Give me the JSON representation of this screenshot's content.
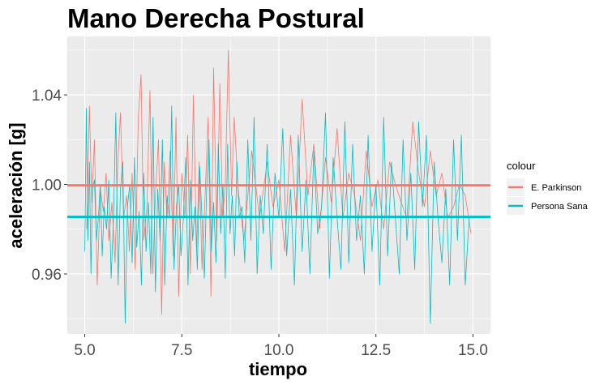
{
  "chart_data": {
    "type": "line",
    "title": "Mano Derecha Postural",
    "xlabel": "tiempo",
    "ylabel": "aceleración [g]",
    "xlim": [
      4.55,
      15.45
    ],
    "ylim": [
      0.9332,
      1.0661
    ],
    "x_ticks": [
      5.0,
      7.5,
      10.0,
      12.5,
      15.0
    ],
    "x_tick_labels": [
      "5.0",
      "7.5",
      "10.0",
      "12.5",
      "15.0"
    ],
    "y_ticks": [
      0.96,
      1.0,
      1.04
    ],
    "y_tick_labels": [
      "0.96",
      "1.00",
      "1.04"
    ],
    "grid": true,
    "legend": {
      "title": "colour",
      "position": "right",
      "entries": [
        "E. Parkinson",
        "Persona Sana"
      ]
    },
    "series": [
      {
        "name": "E. Parkinson",
        "color": "#F8766D",
        "mean": 0.9996,
        "x": [
          5.05,
          5.12,
          5.18,
          5.25,
          5.32,
          5.4,
          5.48,
          5.55,
          5.62,
          5.7,
          5.78,
          5.85,
          5.92,
          6.0,
          6.08,
          6.15,
          6.22,
          6.3,
          6.38,
          6.45,
          6.52,
          6.6,
          6.68,
          6.75,
          6.82,
          6.9,
          6.98,
          7.05,
          7.12,
          7.2,
          7.28,
          7.35,
          7.42,
          7.5,
          7.58,
          7.65,
          7.72,
          7.8,
          7.88,
          7.95,
          8.02,
          8.1,
          8.18,
          8.25,
          8.32,
          8.4,
          8.48,
          8.55,
          8.62,
          8.7,
          8.78,
          8.85,
          8.95,
          9.1,
          9.3,
          9.5,
          9.7,
          9.85,
          10.0,
          10.15,
          10.3,
          10.45,
          10.6,
          10.75,
          10.9,
          11.05,
          11.2,
          11.35,
          11.5,
          11.65,
          11.8,
          11.95,
          12.1,
          12.25,
          12.4,
          12.55,
          12.7,
          12.85,
          13.0,
          13.15,
          13.3,
          13.45,
          13.6,
          13.75,
          13.9,
          14.05,
          14.2,
          14.35,
          14.5,
          14.65,
          14.8,
          14.95
        ],
        "y": [
          0.98,
          1.035,
          0.992,
          1.02,
          0.955,
          0.998,
          0.988,
          1.005,
          0.975,
          0.992,
          0.965,
          1.01,
          1.032,
          0.985,
          0.995,
          0.97,
          1.005,
          0.962,
          1.03,
          1.049,
          0.975,
          0.99,
          1.042,
          0.96,
          0.995,
          1.02,
          0.942,
          1.01,
          0.985,
          1.015,
          0.968,
          1.03,
          0.95,
          1.005,
          0.985,
          1.022,
          0.96,
          1.04,
          0.97,
          1.01,
          0.962,
          0.995,
          1.03,
          0.95,
          1.052,
          0.975,
          1.045,
          0.985,
          1.0,
          1.06,
          0.995,
          1.03,
          0.998,
          0.975,
          1.015,
          0.985,
          1.01,
          0.99,
          1.002,
          0.97,
          1.022,
          0.985,
          1.038,
          0.995,
          1.018,
          0.98,
          1.012,
          0.992,
          1.025,
          0.985,
          1.005,
          0.995,
          0.975,
          1.015,
          0.99,
          1.002,
          0.98,
          1.01,
          1.0,
          0.992,
          0.985,
          1.028,
          1.005,
          0.99,
          1.015,
          0.995,
          1.005,
          0.985,
          0.99,
          1.0,
          0.995,
          0.978
        ]
      },
      {
        "name": "Persona Sana",
        "color": "#00BFC4",
        "mean": 0.9855,
        "x": [
          5.0,
          5.04,
          5.08,
          5.12,
          5.16,
          5.2,
          5.25,
          5.3,
          5.35,
          5.4,
          5.45,
          5.5,
          5.56,
          5.62,
          5.68,
          5.74,
          5.8,
          5.86,
          5.92,
          5.98,
          6.04,
          6.1,
          6.16,
          6.22,
          6.28,
          6.34,
          6.4,
          6.46,
          6.52,
          6.58,
          6.64,
          6.7,
          6.76,
          6.82,
          6.88,
          6.94,
          7.0,
          7.06,
          7.12,
          7.18,
          7.24,
          7.3,
          7.36,
          7.42,
          7.48,
          7.54,
          7.6,
          7.66,
          7.72,
          7.78,
          7.84,
          7.9,
          7.96,
          8.02,
          8.08,
          8.14,
          8.2,
          8.26,
          8.32,
          8.38,
          8.44,
          8.5,
          8.56,
          8.62,
          8.68,
          8.74,
          8.8,
          8.86,
          8.92,
          8.98,
          9.05,
          9.12,
          9.2,
          9.28,
          9.36,
          9.44,
          9.52,
          9.6,
          9.7,
          9.8,
          9.9,
          10.0,
          10.1,
          10.2,
          10.3,
          10.4,
          10.5,
          10.6,
          10.7,
          10.8,
          10.9,
          11.0,
          11.1,
          11.2,
          11.3,
          11.4,
          11.5,
          11.6,
          11.7,
          11.8,
          11.9,
          12.0,
          12.1,
          12.2,
          12.3,
          12.4,
          12.5,
          12.6,
          12.7,
          12.8,
          12.9,
          13.0,
          13.1,
          13.2,
          13.3,
          13.4,
          13.5,
          13.6,
          13.7,
          13.8,
          13.9,
          14.0,
          14.1,
          14.2,
          14.3,
          14.4,
          14.5,
          14.6,
          14.7,
          14.8,
          14.9
        ],
        "y": [
          0.97,
          1.034,
          0.975,
          1.01,
          0.96,
          0.998,
          1.002,
          0.975,
          0.985,
          1.0,
          0.968,
          0.99,
          0.98,
          1.002,
          0.958,
          0.985,
          1.032,
          0.955,
          0.998,
          1.01,
          0.938,
          0.99,
          1.0,
          0.965,
          1.012,
          0.972,
          0.988,
          0.955,
          1.005,
          0.97,
          0.992,
          0.96,
          1.03,
          0.952,
          0.998,
          0.975,
          1.02,
          0.955,
          0.995,
          0.985,
          1.035,
          0.962,
          0.99,
          1.0,
          0.968,
          0.985,
          1.012,
          0.955,
          1.002,
          0.975,
          0.99,
          0.962,
          1.008,
          0.985,
          0.958,
          0.998,
          1.02,
          0.97,
          0.992,
          0.965,
          1.018,
          0.978,
          1.0,
          0.958,
          1.018,
          0.978,
          0.995,
          0.968,
          1.01,
          0.985,
          0.99,
          0.965,
          1.02,
          0.975,
          1.03,
          0.96,
          0.995,
          0.978,
          1.018,
          0.962,
          1.005,
          0.985,
          1.025,
          0.968,
          0.998,
          0.955,
          1.022,
          0.97,
          1.002,
          0.96,
          1.015,
          0.978,
          0.99,
          1.032,
          0.958,
          1.012,
          0.985,
          0.962,
          1.028,
          0.965,
          1.018,
          0.975,
          0.995,
          0.96,
          1.022,
          0.97,
          1.0,
          0.955,
          1.03,
          0.968,
          1.01,
          0.985,
          0.96,
          1.02,
          0.975,
          1.005,
          0.962,
          1.028,
          0.99,
          1.022,
          0.938,
          1.01,
          0.985,
          0.965,
          0.998,
          0.955,
          1.02,
          0.975,
          1.022,
          0.955,
          0.985
        ]
      }
    ]
  }
}
